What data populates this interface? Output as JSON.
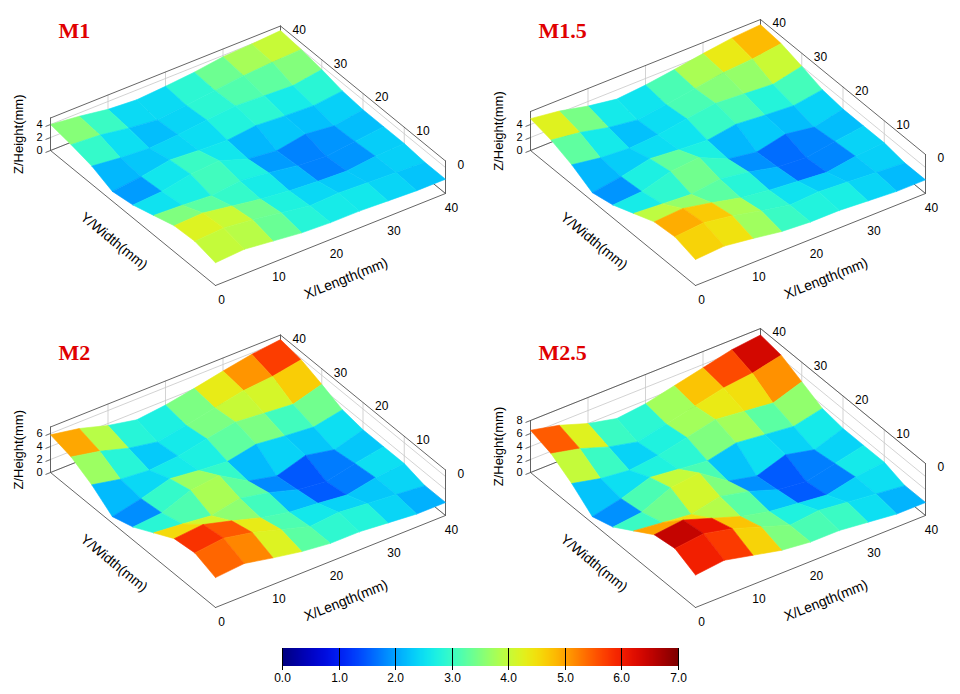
{
  "chart_data": [
    {
      "type": "surface",
      "title": "M1",
      "x_label": "X/Length(mm)",
      "y_label": "Y/Width(mm)",
      "z_label": "Z/Height(mm)",
      "x": [
        0,
        5,
        10,
        15,
        20,
        25,
        30,
        35,
        40
      ],
      "y": [
        0,
        5,
        10,
        15,
        20,
        25,
        30,
        35,
        40
      ],
      "z": [
        [
          3.5,
          3.8,
          3.3,
          2.8,
          2.6,
          2.6,
          2.4,
          2.2,
          2.2
        ],
        [
          4.2,
          4.5,
          4.0,
          3.3,
          2.6,
          2.8,
          2.6,
          2.4,
          2.2
        ],
        [
          4.0,
          4.2,
          3.5,
          2.8,
          2.3,
          2.0,
          1.8,
          2.3,
          2.5
        ],
        [
          3.0,
          2.8,
          2.5,
          3.0,
          2.5,
          1.8,
          1.5,
          2.0,
          2.5
        ],
        [
          2.0,
          2.3,
          3.2,
          3.5,
          2.0,
          1.5,
          2.3,
          1.8,
          2.5
        ],
        [
          1.5,
          2.0,
          2.8,
          2.5,
          2.3,
          2.8,
          2.5,
          2.3,
          2.8
        ],
        [
          2.8,
          2.3,
          2.0,
          2.3,
          2.8,
          3.2,
          3.0,
          2.8,
          3.5
        ],
        [
          3.5,
          3.2,
          2.5,
          2.0,
          2.5,
          3.0,
          3.5,
          3.8,
          4.0
        ],
        [
          4.0,
          3.5,
          2.8,
          2.5,
          2.8,
          3.2,
          3.8,
          4.0,
          4.3
        ]
      ],
      "xlim": [
        0,
        40
      ],
      "ylim": [
        0,
        40
      ],
      "zlim": [
        0,
        5
      ],
      "xticks": [
        0,
        10,
        20,
        30,
        40
      ],
      "yticks": [
        0,
        10,
        20,
        30,
        40
      ],
      "zticks": [
        0,
        2,
        4
      ],
      "grid": true
    },
    {
      "type": "surface",
      "title": "M1.5",
      "x_label": "X/Length(mm)",
      "y_label": "Y/Width(mm)",
      "z_label": "Z/Height(mm)",
      "x": [
        0,
        5,
        10,
        15,
        20,
        25,
        30,
        35,
        40
      ],
      "y": [
        0,
        5,
        10,
        15,
        20,
        25,
        30,
        35,
        40
      ],
      "z": [
        [
          4.0,
          4.3,
          3.7,
          3.0,
          2.7,
          2.7,
          2.4,
          2.1,
          2.1
        ],
        [
          4.9,
          5.3,
          4.6,
          3.6,
          2.7,
          3.0,
          2.7,
          2.4,
          2.1
        ],
        [
          4.6,
          4.9,
          4.0,
          3.0,
          2.4,
          2.0,
          1.6,
          2.3,
          2.6
        ],
        [
          3.3,
          3.0,
          2.7,
          3.3,
          2.6,
          1.6,
          1.3,
          2.0,
          2.6
        ],
        [
          2.0,
          2.3,
          3.6,
          4.0,
          2.0,
          1.3,
          2.3,
          1.6,
          2.6
        ],
        [
          1.3,
          2.0,
          3.0,
          2.6,
          2.3,
          3.0,
          2.6,
          2.3,
          3.0
        ],
        [
          3.0,
          2.3,
          2.0,
          2.3,
          3.0,
          3.6,
          3.3,
          3.0,
          4.0
        ],
        [
          4.2,
          3.6,
          2.6,
          2.0,
          2.6,
          3.3,
          4.0,
          4.3,
          4.9
        ],
        [
          4.9,
          4.3,
          3.3,
          2.6,
          3.0,
          3.6,
          4.3,
          4.9,
          5.2
        ]
      ],
      "xlim": [
        0,
        40
      ],
      "ylim": [
        0,
        40
      ],
      "zlim": [
        0,
        6
      ],
      "xticks": [
        0,
        10,
        20,
        30,
        40
      ],
      "yticks": [
        0,
        10,
        20,
        30,
        40
      ],
      "zticks": [
        0,
        2,
        4
      ],
      "grid": true
    },
    {
      "type": "surface",
      "title": "M2",
      "x_label": "X/Length(mm)",
      "y_label": "Y/Width(mm)",
      "z_label": "Z/Height(mm)",
      "x": [
        0,
        5,
        10,
        15,
        20,
        25,
        30,
        35,
        40
      ],
      "y": [
        0,
        5,
        10,
        15,
        20,
        25,
        30,
        35,
        40
      ],
      "z": [
        [
          4.6,
          5.0,
          4.1,
          3.3,
          2.8,
          2.8,
          2.4,
          2.0,
          2.0
        ],
        [
          5.8,
          6.3,
          5.4,
          4.1,
          2.8,
          3.2,
          2.8,
          2.4,
          2.0
        ],
        [
          5.4,
          5.8,
          4.6,
          3.3,
          2.4,
          2.0,
          1.5,
          2.4,
          2.8
        ],
        [
          3.7,
          3.3,
          2.8,
          3.7,
          2.8,
          1.5,
          1.0,
          2.0,
          2.8
        ],
        [
          2.0,
          2.4,
          4.1,
          4.6,
          2.0,
          1.0,
          2.4,
          1.5,
          2.8
        ],
        [
          1.0,
          2.0,
          3.3,
          2.8,
          2.4,
          3.3,
          2.8,
          2.4,
          3.3
        ],
        [
          3.3,
          2.4,
          2.0,
          2.4,
          3.3,
          4.1,
          3.7,
          3.3,
          4.6
        ],
        [
          5.0,
          4.1,
          2.8,
          2.0,
          2.8,
          3.7,
          4.6,
          5.0,
          5.8
        ],
        [
          5.8,
          5.0,
          3.7,
          2.8,
          3.3,
          4.1,
          5.0,
          5.8,
          6.3
        ]
      ],
      "xlim": [
        0,
        40
      ],
      "ylim": [
        0,
        40
      ],
      "zlim": [
        0,
        7
      ],
      "xticks": [
        0,
        10,
        20,
        30,
        40
      ],
      "yticks": [
        0,
        10,
        20,
        30,
        40
      ],
      "zticks": [
        0,
        2,
        4,
        6
      ],
      "grid": true
    },
    {
      "type": "surface",
      "title": "M2.5",
      "x_label": "X/Length(mm)",
      "y_label": "Y/Width(mm)",
      "z_label": "Z/Height(mm)",
      "x": [
        0,
        5,
        10,
        15,
        20,
        25,
        30,
        35,
        40
      ],
      "y": [
        0,
        5,
        10,
        15,
        20,
        25,
        30,
        35,
        40
      ],
      "z": [
        [
          5.0,
          5.5,
          4.5,
          3.5,
          3.0,
          3.0,
          2.5,
          2.0,
          2.0
        ],
        [
          6.5,
          7.0,
          6.0,
          4.5,
          3.0,
          3.5,
          3.0,
          2.5,
          2.0
        ],
        [
          6.0,
          6.5,
          5.0,
          3.5,
          2.5,
          2.0,
          1.5,
          2.5,
          3.0
        ],
        [
          4.0,
          3.5,
          3.0,
          4.0,
          3.0,
          1.5,
          1.0,
          2.0,
          3.0
        ],
        [
          2.0,
          2.5,
          4.5,
          5.0,
          2.0,
          1.0,
          2.5,
          1.5,
          3.0
        ],
        [
          1.0,
          2.0,
          3.5,
          3.0,
          2.5,
          3.5,
          3.0,
          2.5,
          3.5
        ],
        [
          3.5,
          2.5,
          2.0,
          2.5,
          3.5,
          4.5,
          4.0,
          3.5,
          5.0
        ],
        [
          5.5,
          4.5,
          3.0,
          2.0,
          3.0,
          4.0,
          5.0,
          5.5,
          6.5
        ],
        [
          6.5,
          5.5,
          4.0,
          3.0,
          3.5,
          4.5,
          5.5,
          6.5,
          7.0
        ]
      ],
      "xlim": [
        0,
        40
      ],
      "ylim": [
        0,
        40
      ],
      "zlim": [
        0,
        8
      ],
      "xticks": [
        0,
        10,
        20,
        30,
        40
      ],
      "yticks": [
        0,
        10,
        20,
        30,
        40
      ],
      "zticks": [
        0,
        2,
        4,
        6,
        8
      ],
      "grid": true
    }
  ],
  "colorbar": {
    "lim": [
      0,
      7
    ],
    "ticks": [
      0,
      1,
      2,
      3,
      4,
      5,
      6,
      7
    ]
  }
}
